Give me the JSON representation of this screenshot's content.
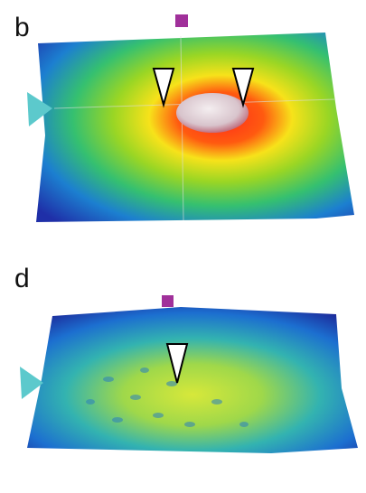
{
  "panels": [
    {
      "label": "b"
    },
    {
      "label": "d"
    }
  ]
}
